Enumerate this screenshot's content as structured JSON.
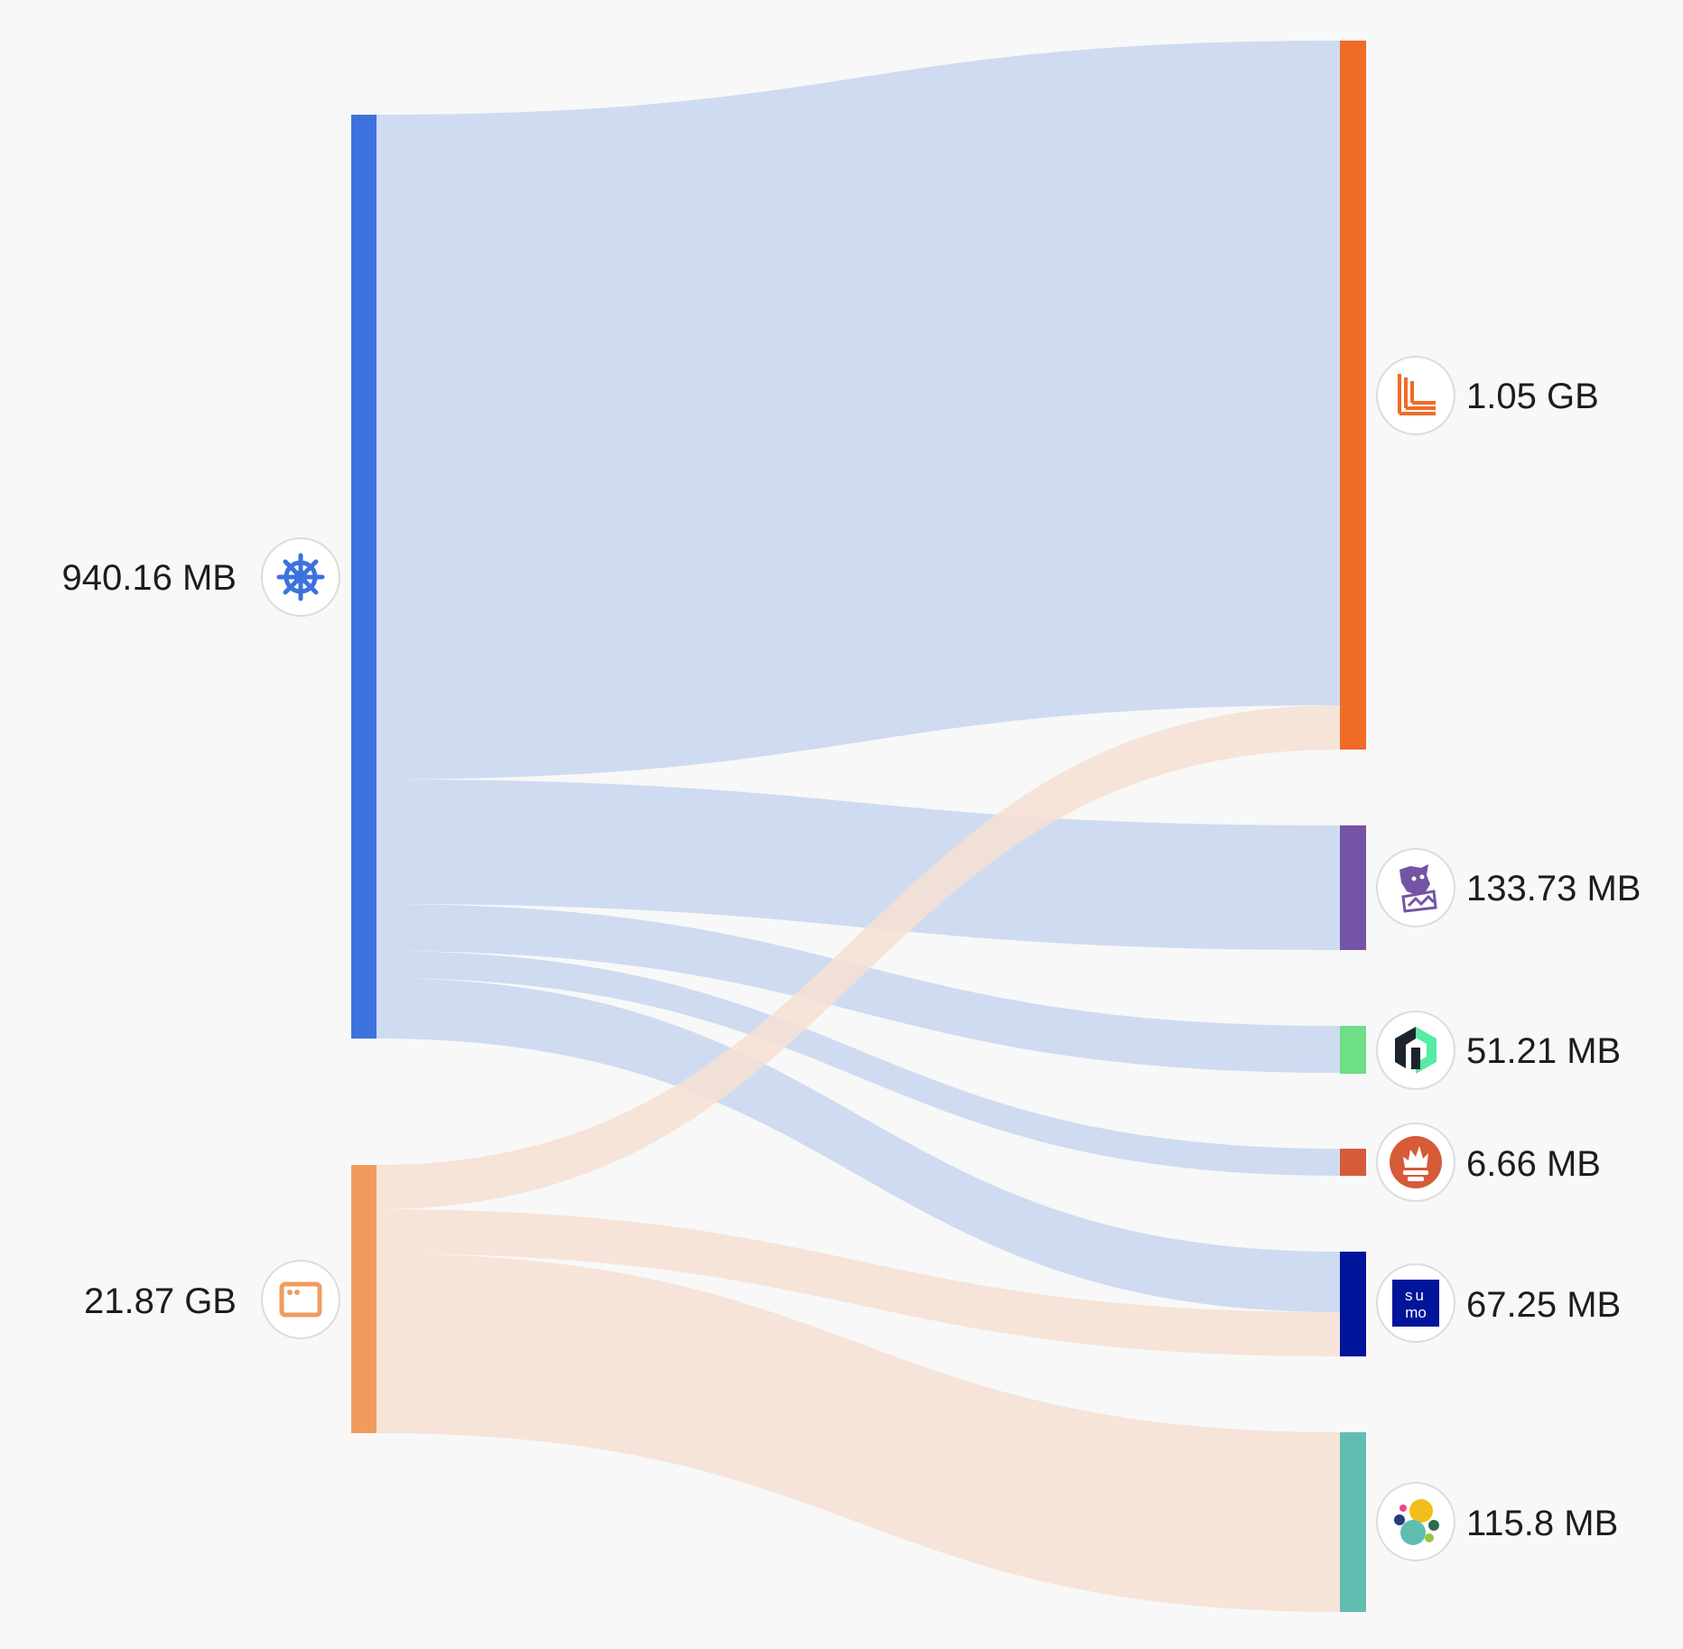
{
  "sources": [
    {
      "id": "kubernetes",
      "label": "940.16 MB",
      "icon": "kubernetes-helm-icon",
      "color": "#3d72de",
      "flow_color": "#c8d6f0"
    },
    {
      "id": "host",
      "label": "21.87 GB",
      "icon": "browser-window-icon",
      "color": "#f19c5e",
      "flow_color": "#f6e1d3"
    }
  ],
  "destinations": [
    {
      "id": "loki",
      "label": "1.05 GB",
      "icon": "loki-icon",
      "color": "#f06b26"
    },
    {
      "id": "datadog",
      "label": "133.73 MB",
      "icon": "datadog-icon",
      "color": "#7354a5"
    },
    {
      "id": "newrelic",
      "label": "51.21 MB",
      "icon": "new-relic-icon",
      "color": "#6ede87"
    },
    {
      "id": "prometheus",
      "label": "6.66 MB",
      "icon": "prometheus-icon",
      "color": "#d65b39"
    },
    {
      "id": "sumo",
      "label": "67.25 MB",
      "icon": "sumo-logic-icon",
      "color": "#001599"
    },
    {
      "id": "elastic",
      "label": "115.8 MB",
      "icon": "elastic-icon",
      "color": "#62bdb1"
    }
  ],
  "flows": [
    {
      "from": "kubernetes",
      "to": "loki"
    },
    {
      "from": "kubernetes",
      "to": "datadog"
    },
    {
      "from": "kubernetes",
      "to": "newrelic"
    },
    {
      "from": "kubernetes",
      "to": "prometheus"
    },
    {
      "from": "kubernetes",
      "to": "sumo"
    },
    {
      "from": "host",
      "to": "loki"
    },
    {
      "from": "host",
      "to": "sumo"
    },
    {
      "from": "host",
      "to": "elastic"
    }
  ],
  "icon_texts": {
    "sumo": [
      "su",
      "mo"
    ]
  }
}
